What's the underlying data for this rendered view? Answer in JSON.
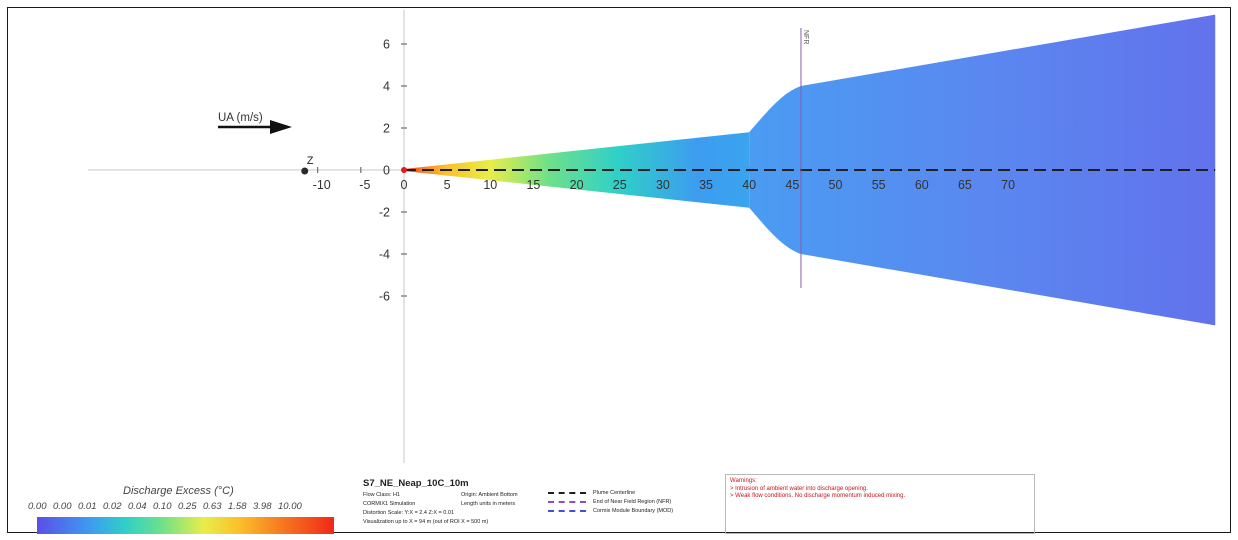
{
  "chart_data": {
    "type": "heatmap",
    "title": "S7_NE_Neap_10C_10m",
    "xlabel": "",
    "ylabel": "",
    "x_ticks": [
      -10,
      -5,
      0,
      5,
      10,
      15,
      20,
      25,
      30,
      35,
      40,
      45,
      50,
      55,
      60,
      65,
      70
    ],
    "y_ticks": [
      6,
      4,
      2,
      0,
      -2,
      -4,
      -6
    ],
    "xlim": [
      -36,
      95
    ],
    "ylim": [
      -13.3,
      7.6
    ],
    "plume_width_profile": [
      {
        "x": 0,
        "half_width": 0.0
      },
      {
        "x": 40,
        "half_width": 1.8
      },
      {
        "x": 46,
        "half_width": 4.0
      },
      {
        "x": 94,
        "half_width": 7.4
      }
    ],
    "plume_upper_edge_far": 7.4,
    "plume_lower_edge_far": -7.4,
    "nfr_x": 46,
    "nfr_label": "NFR",
    "origin_label": "Z",
    "origin_marker_x": -11.5,
    "ambient_arrow_label": "UA (m/s)",
    "colorbar": {
      "title": "Discharge Excess  (°C)",
      "ticks": [
        "0.00",
        "0.00",
        "0.01",
        "0.02",
        "0.04",
        "0.10",
        "0.25",
        "0.63",
        "1.58",
        "3.98",
        "10.00"
      ],
      "colors": [
        "#5b4fe8",
        "#3d9cf0",
        "#2fd0c8",
        "#6ee08a",
        "#e7ee4a",
        "#fbc02a",
        "#f77b20",
        "#f02818"
      ]
    }
  },
  "info": {
    "title": "S7_NE_Neap_10C_10m",
    "rows": [
      [
        "Flow Class: H1",
        "Origin: Ambient Bottom"
      ],
      [
        "CORMIX1 Simulation",
        "Length units in meters"
      ],
      [
        "Distortion Scale:  Y:X = 2.4   Z:X = 0.01",
        ""
      ],
      [
        "Visualization up to X = 94 m (out of ROI X = 500 m)",
        ""
      ]
    ]
  },
  "line_legend": [
    {
      "label": "Plume Centerline",
      "color": "#1f1f1f"
    },
    {
      "label": "End of Near Field Region (NFR)",
      "color": "#8a4fc8"
    },
    {
      "label": "Cormix Module Boundary (MOD)",
      "color": "#4a4ad8"
    }
  ],
  "warnings": {
    "title": "Warnings:",
    "items": [
      "> Intrusion of ambient water into discharge opening.",
      "> Weak flow conditions. No discharge momentum induced mixing."
    ]
  }
}
